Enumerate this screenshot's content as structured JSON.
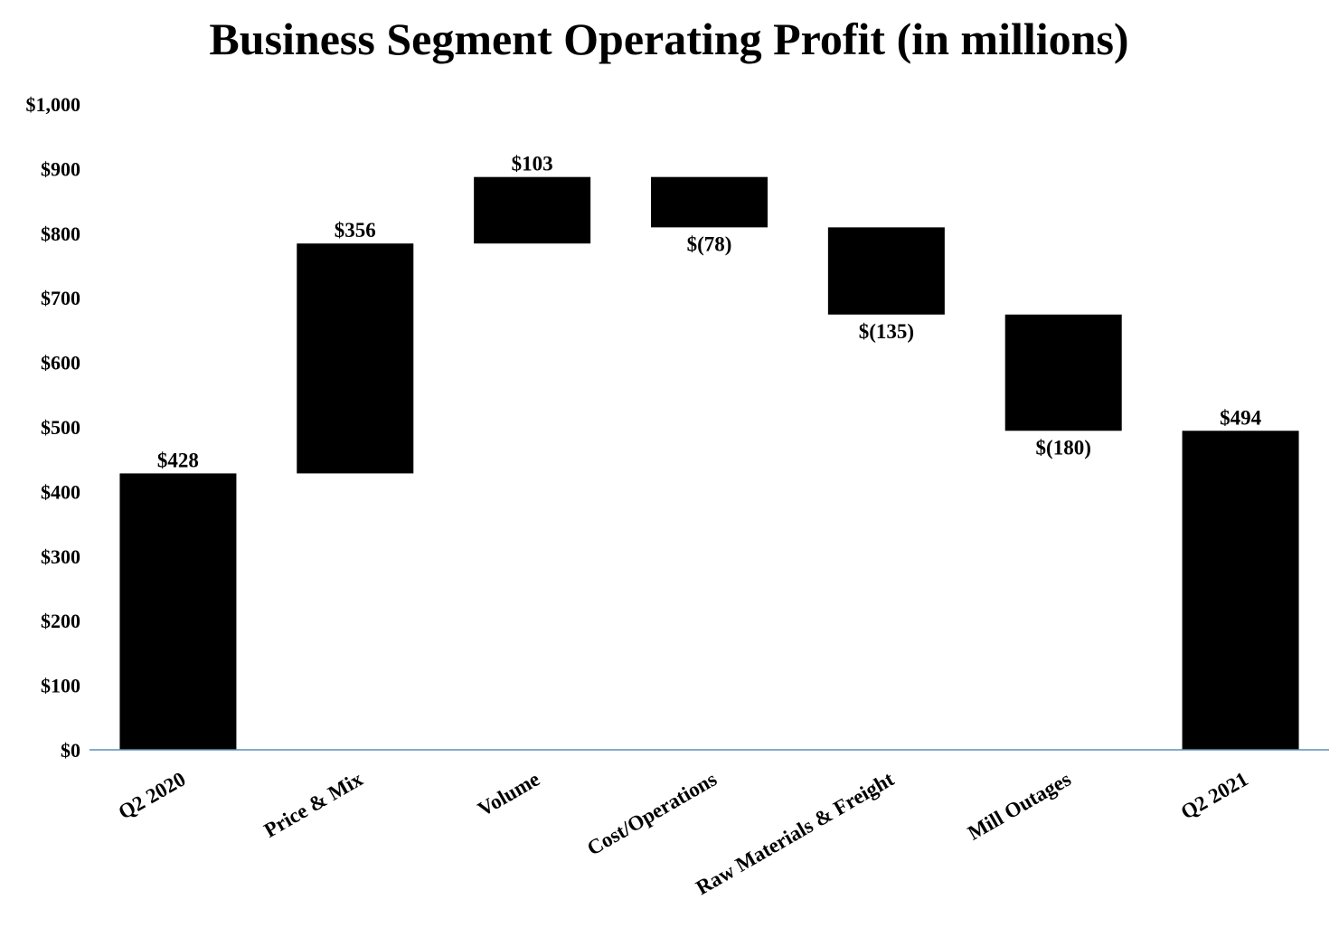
{
  "chart_data": {
    "type": "bar",
    "subtype": "waterfall",
    "title": "Business Segment Operating Profit (in millions)",
    "xlabel": "",
    "ylabel": "",
    "ylim": [
      0,
      1000
    ],
    "yticks": [
      0,
      100,
      200,
      300,
      400,
      500,
      600,
      700,
      800,
      900,
      1000
    ],
    "ytick_labels": [
      "$0",
      "$100",
      "$200",
      "$300",
      "$400",
      "$500",
      "$600",
      "$700",
      "$800",
      "$900",
      "$1,000"
    ],
    "grid": false,
    "legend": "none",
    "bar_color": "#000000",
    "axis_color": "#5b8db8",
    "categories": [
      "Q2 2020",
      "Price & Mix",
      "Volume",
      "Cost/Operations",
      "Raw Materials & Freight",
      "Mill Outages",
      "Q2 2021"
    ],
    "values": [
      428,
      356,
      103,
      -78,
      -135,
      -180,
      494
    ],
    "kinds": [
      "total",
      "delta",
      "delta",
      "delta",
      "delta",
      "delta",
      "total"
    ],
    "data_labels": [
      "$428",
      "$356",
      "$103",
      "$(78)",
      "$(135)",
      "$(180)",
      "$494"
    ]
  }
}
